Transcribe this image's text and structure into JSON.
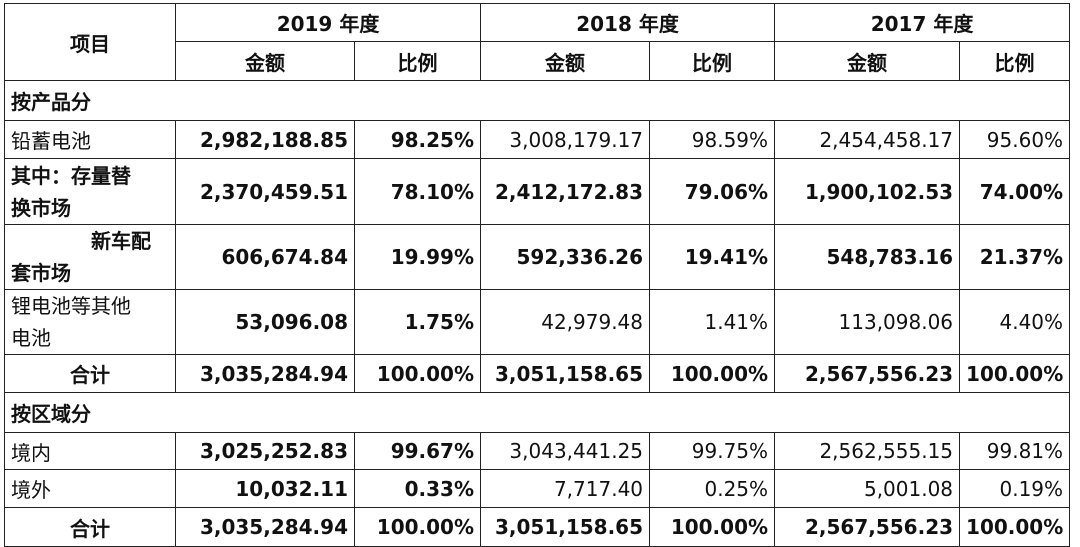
{
  "header": {
    "item": "项目",
    "years": [
      "2019 年度",
      "2018 年度",
      "2017 年度"
    ],
    "amount": "金额",
    "ratio": "比例"
  },
  "section_product": {
    "title": "按产品分",
    "rows": [
      {
        "label": "铅蓄电池",
        "a2019": "2,982,188.85",
        "r2019": "98.25%",
        "a2018": "3,008,179.17",
        "r2018": "98.59%",
        "a2017": "2,454,458.17",
        "r2017": "95.60%"
      },
      {
        "label_1": "其中：存量替",
        "label_2": "换市场",
        "a2019": "2,370,459.51",
        "r2019": "78.10%",
        "a2018": "2,412,172.83",
        "r2018": "79.06%",
        "a2017": "1,900,102.53",
        "r2017": "74.00%"
      },
      {
        "label_1": "新车配",
        "label_2": "套市场",
        "a2019": "606,674.84",
        "r2019": "19.99%",
        "a2018": "592,336.26",
        "r2018": "19.41%",
        "a2017": "548,783.16",
        "r2017": "21.37%"
      },
      {
        "label_1": "锂电池等其他",
        "label_2": "电池",
        "a2019": "53,096.08",
        "r2019": "1.75%",
        "a2018": "42,979.48",
        "r2018": "1.41%",
        "a2017": "113,098.06",
        "r2017": "4.40%"
      }
    ],
    "total": {
      "label": "合计",
      "a2019": "3,035,284.94",
      "r2019": "100.00%",
      "a2018": "3,051,158.65",
      "r2018": "100.00%",
      "a2017": "2,567,556.23",
      "r2017": "100.00%"
    }
  },
  "section_region": {
    "title": "按区域分",
    "rows": [
      {
        "label": "境内",
        "a2019": "3,025,252.83",
        "r2019": "99.67%",
        "a2018": "3,043,441.25",
        "r2018": "99.75%",
        "a2017": "2,562,555.15",
        "r2017": "99.81%"
      },
      {
        "label": "境外",
        "a2019": "10,032.11",
        "r2019": "0.33%",
        "a2018": "7,717.40",
        "r2018": "0.25%",
        "a2017": "5,001.08",
        "r2017": "0.19%"
      }
    ],
    "total": {
      "label": "合计",
      "a2019": "3,035,284.94",
      "r2019": "100.00%",
      "a2018": "3,051,158.65",
      "r2018": "100.00%",
      "a2017": "2,567,556.23",
      "r2017": "100.00%"
    }
  }
}
